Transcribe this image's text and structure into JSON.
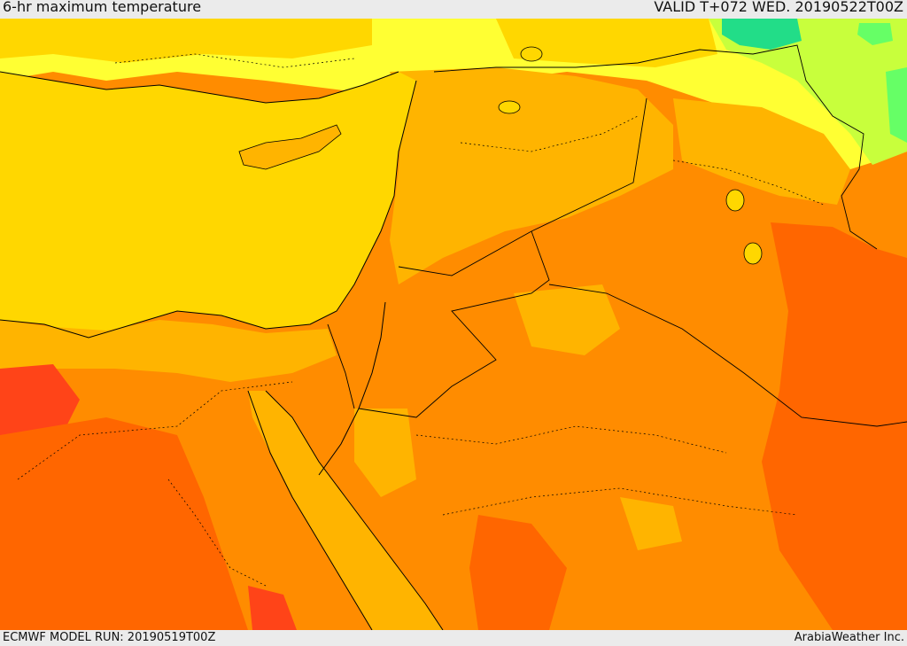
{
  "header": {
    "title": "6-hr maximum temperature",
    "valid": "VALID T+072 WED. 20190522T00Z"
  },
  "footer": {
    "model_run": "ECMWF MODEL RUN: 20190519T00Z",
    "credit": "ArabiaWeather Inc."
  },
  "colors": {
    "sea": "#ffd700",
    "warm": "#ffb400",
    "hot": "#ff8c00",
    "very_hot": "#ff6600",
    "extreme": "#ff4418",
    "mild": "#ffff33",
    "cool": "#c8ff3c",
    "cold": "#66ff66",
    "coldest": "#22dd88",
    "border": "#000000"
  }
}
